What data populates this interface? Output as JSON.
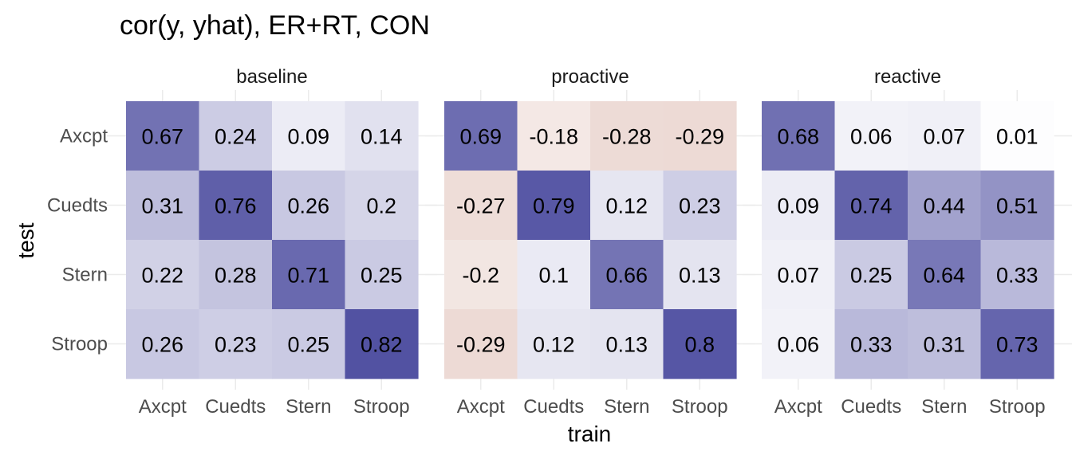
{
  "chart_data": {
    "type": "heatmap",
    "title": "cor(y, yhat), ER+RT, CON",
    "xlabel": "train",
    "ylabel": "test",
    "categories_x": [
      "Axcpt",
      "Cuedts",
      "Stern",
      "Stroop"
    ],
    "categories_y": [
      "Axcpt",
      "Cuedts",
      "Stern",
      "Stroop"
    ],
    "color_scale": {
      "low": "#c0806e",
      "mid": "#ffffff",
      "high": "#2c2c8e",
      "limits": [
        -1,
        1
      ]
    },
    "facets": [
      {
        "name": "baseline",
        "values": [
          [
            0.67,
            0.24,
            0.09,
            0.14
          ],
          [
            0.31,
            0.76,
            0.26,
            0.2
          ],
          [
            0.22,
            0.28,
            0.71,
            0.25
          ],
          [
            0.26,
            0.23,
            0.25,
            0.82
          ]
        ]
      },
      {
        "name": "proactive",
        "values": [
          [
            0.69,
            -0.18,
            -0.28,
            -0.29
          ],
          [
            -0.27,
            0.79,
            0.12,
            0.23
          ],
          [
            -0.2,
            0.1,
            0.66,
            0.13
          ],
          [
            -0.29,
            0.12,
            0.13,
            0.8
          ]
        ]
      },
      {
        "name": "reactive",
        "values": [
          [
            0.68,
            0.06,
            0.07,
            0.01
          ],
          [
            0.09,
            0.74,
            0.44,
            0.51
          ],
          [
            0.07,
            0.25,
            0.64,
            0.33
          ],
          [
            0.06,
            0.33,
            0.31,
            0.73
          ]
        ]
      }
    ],
    "grid": true,
    "legend": "none"
  }
}
